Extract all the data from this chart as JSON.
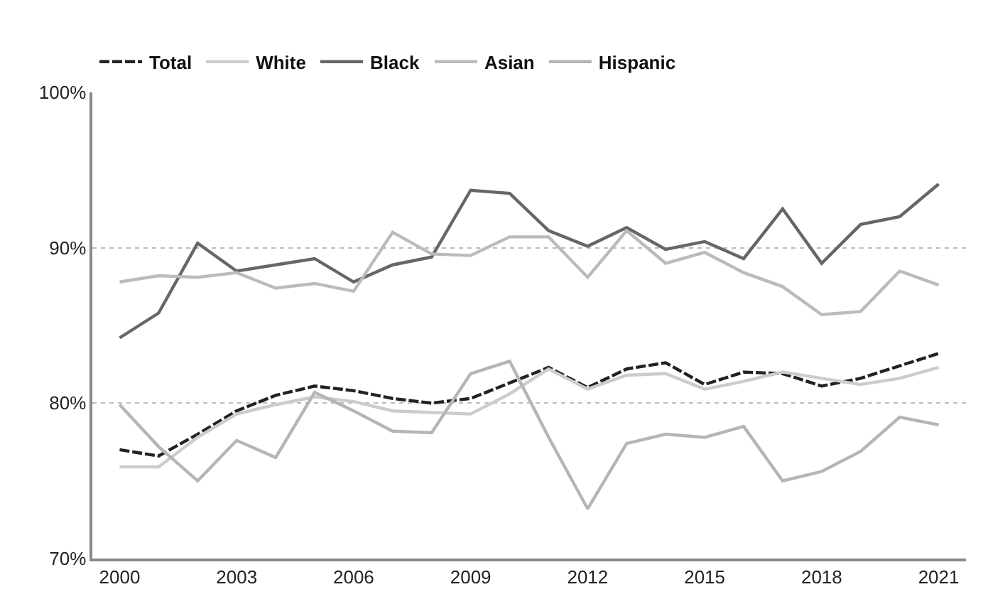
{
  "chart_data": {
    "type": "line",
    "x": [
      2000,
      2001,
      2002,
      2003,
      2004,
      2005,
      2006,
      2007,
      2008,
      2009,
      2010,
      2011,
      2012,
      2013,
      2014,
      2015,
      2016,
      2017,
      2018,
      2019,
      2020,
      2021
    ],
    "series": [
      {
        "name": "Total",
        "color": "#222222",
        "line_style": "dashed",
        "values": [
          77.0,
          76.6,
          78.0,
          79.5,
          80.5,
          81.1,
          80.8,
          80.3,
          80.0,
          80.3,
          81.3,
          82.3,
          81.0,
          82.2,
          82.6,
          81.2,
          82.0,
          81.9,
          81.1,
          81.6,
          82.4,
          83.2
        ]
      },
      {
        "name": "White",
        "color": "#cccccc",
        "values": [
          75.9,
          75.9,
          77.8,
          79.3,
          79.9,
          80.4,
          80.1,
          79.5,
          79.4,
          79.3,
          80.6,
          82.2,
          80.9,
          81.8,
          81.9,
          80.9,
          81.4,
          82.0,
          81.6,
          81.2,
          81.6,
          82.3
        ]
      },
      {
        "name": "Black",
        "color": "#666666",
        "values": [
          84.2,
          85.8,
          90.3,
          88.5,
          88.9,
          89.3,
          87.8,
          88.9,
          89.4,
          93.7,
          93.5,
          91.1,
          90.1,
          91.3,
          89.9,
          90.4,
          89.3,
          92.5,
          89.0,
          91.5,
          92.0,
          94.1
        ]
      },
      {
        "name": "Asian",
        "color": "#bbbbbb",
        "values": [
          87.8,
          88.2,
          88.1,
          88.4,
          87.4,
          87.7,
          87.2,
          91.0,
          89.6,
          89.5,
          90.7,
          90.7,
          88.1,
          91.1,
          89.0,
          89.7,
          88.4,
          87.5,
          85.7,
          85.9,
          88.5,
          87.6
        ]
      },
      {
        "name": "Hispanic",
        "color": "#b5b5b5",
        "values": [
          79.9,
          77.2,
          75.0,
          77.6,
          76.5,
          80.7,
          79.5,
          78.2,
          78.1,
          81.9,
          82.7,
          77.8,
          73.2,
          77.4,
          78.0,
          77.8,
          78.5,
          75.0,
          75.6,
          76.9,
          79.1,
          78.6
        ]
      }
    ],
    "xlim": [
      1999.3,
      2021.7
    ],
    "xticks": [
      2000,
      2003,
      2006,
      2009,
      2012,
      2015,
      2018,
      2021
    ],
    "ylim": [
      70,
      100
    ],
    "yticks": [
      {
        "value": 70,
        "label": "70%"
      },
      {
        "value": 80,
        "label": "80%"
      },
      {
        "value": 90,
        "label": "90%"
      },
      {
        "value": 100,
        "label": "100%"
      }
    ],
    "grid": "y",
    "legend": "top left",
    "line_style": "solid",
    "marker": "none"
  }
}
